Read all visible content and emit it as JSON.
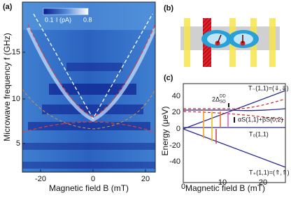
{
  "panel_a": {
    "label": "(a)",
    "y_axis_label": "Microwave frequency f (GHz)",
    "x_axis_label": "Magnetic field B (mT)",
    "y_ticks": [
      "15",
      "10",
      "5"
    ],
    "x_ticks": [
      "-20",
      "0",
      "20"
    ],
    "colorbar": {
      "min": "0.1",
      "title": "I (pA)",
      "max": "0.8"
    }
  },
  "panel_b": {
    "label": "(b)"
  },
  "panel_c": {
    "label": "(c)",
    "y_axis_label": "Energy (μeV)",
    "x_axis_label": "Magnetic field B (mT)",
    "y_ticks": [
      "40",
      "20",
      "0",
      "-20",
      "-40"
    ],
    "x_ticks": [
      "0",
      "10",
      "20"
    ],
    "annotations": [
      "T₋(1,1)=(⇓,⇓)",
      "2Δ",
      "SO",
      "DD",
      "αS(1,1)+βS(0,2)",
      "T₀(1,1)",
      "T₊(1,1)=(⇑,⇑)"
    ]
  }
}
